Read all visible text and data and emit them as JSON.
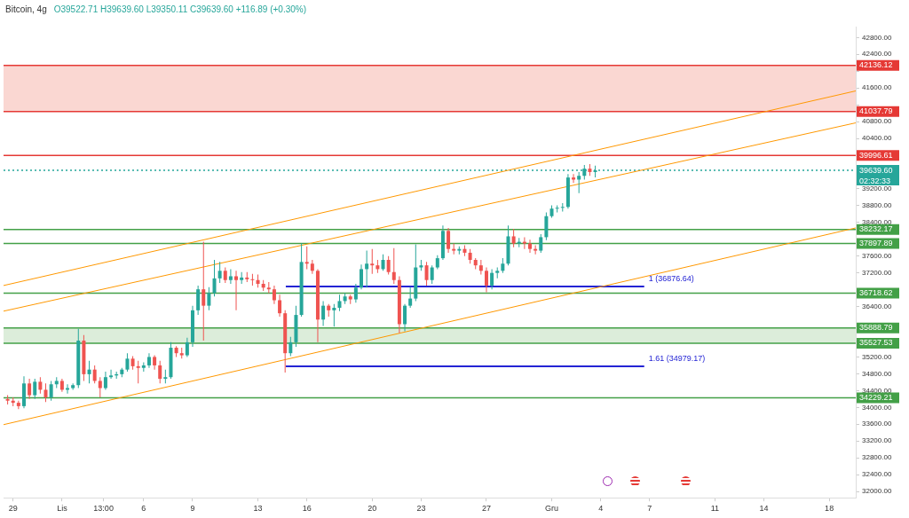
{
  "chart_data": {
    "type": "candlestick",
    "title": "Bitcoin, 4g",
    "subtitle": "O39522.71 H39639.60 L39350.11 C39639.60 +116.89 (+0.30%)",
    "x": [
      "--10-28T16:00",
      "--10-29T00:00",
      "--10-29T08:00",
      "--10-29T16:00",
      "--10-30T00:00",
      "--10-30T08:00",
      "--10-30T16:00",
      "--10-31T00:00",
      "--10-31T08:00",
      "--10-31T16:00",
      "--11-01T00:00",
      "--11-01T08:00",
      "--11-01T16:00",
      "--11-02T00:00",
      "--11-02T08:00",
      "--11-02T16:00",
      "--11-03T00:00",
      "--11-03T08:00",
      "--11-03T16:00",
      "--11-04T00:00",
      "--11-04T08:00",
      "--11-04T16:00",
      "--11-05T00:00",
      "--11-05T08:00",
      "--11-05T16:00",
      "--11-06T00:00",
      "--11-06T08:00",
      "--11-06T16:00",
      "--11-07T00:00",
      "--11-07T08:00",
      "--11-07T16:00",
      "--11-08T00:00",
      "--11-08T08:00",
      "--11-08T16:00",
      "--11-09T00:00",
      "--11-09T08:00",
      "--11-09T16:00",
      "--11-10T00:00",
      "--11-10T08:00",
      "--11-10T16:00",
      "--11-11T00:00",
      "--11-11T08:00",
      "--11-11T16:00",
      "--11-12T00:00",
      "--11-12T08:00",
      "--11-12T16:00",
      "--11-13T00:00",
      "--11-13T08:00",
      "--11-13T16:00",
      "--11-14T00:00",
      "--11-14T08:00",
      "--11-14T16:00",
      "--11-15T00:00",
      "--11-15T08:00",
      "--11-15T16:00",
      "--11-16T00:00",
      "--11-16T08:00",
      "--11-16T16:00",
      "--11-17T00:00",
      "--11-17T08:00",
      "--11-17T16:00",
      "--11-18T00:00",
      "--11-18T08:00",
      "--11-18T16:00",
      "--11-19T00:00",
      "--11-19T08:00",
      "--11-19T16:00",
      "--11-20T00:00",
      "--11-20T08:00",
      "--11-20T16:00",
      "--11-21T00:00",
      "--11-21T08:00",
      "--11-21T16:00",
      "--11-22T00:00",
      "--11-22T08:00",
      "--11-22T16:00",
      "--11-23T00:00",
      "--11-23T08:00",
      "--11-23T16:00",
      "--11-24T00:00",
      "--11-24T08:00",
      "--11-24T16:00",
      "--11-25T00:00",
      "--11-25T08:00",
      "--11-25T16:00",
      "--11-26T00:00",
      "--11-26T08:00",
      "--11-26T16:00",
      "--11-27T00:00",
      "--11-27T08:00",
      "--11-27T16:00",
      "--11-28T00:00",
      "--11-28T08:00",
      "--11-28T16:00",
      "--11-29T00:00",
      "--11-29T08:00",
      "--11-29T16:00",
      "--11-30T00:00",
      "--11-30T08:00",
      "--11-30T16:00",
      "--12-01T00:00",
      "--12-01T08:00",
      "--12-01T16:00",
      "--12-02T00:00",
      "--12-02T08:00",
      "--12-02T16:00",
      "--12-03T00:00",
      "--12-03T08:00",
      "--12-03T16:00"
    ],
    "ohlc": [
      [
        34200,
        34290,
        34070,
        34160
      ],
      [
        34160,
        34240,
        34030,
        34110
      ],
      [
        34110,
        34160,
        33960,
        34030
      ],
      [
        34030,
        34740,
        33980,
        34570
      ],
      [
        34570,
        34680,
        34200,
        34290
      ],
      [
        34290,
        34680,
        34200,
        34610
      ],
      [
        34610,
        34720,
        34330,
        34420
      ],
      [
        34420,
        34570,
        34130,
        34240
      ],
      [
        34240,
        34630,
        34160,
        34550
      ],
      [
        34550,
        34720,
        34460,
        34630
      ],
      [
        34630,
        34680,
        34370,
        34420
      ],
      [
        34420,
        34550,
        34330,
        34460
      ],
      [
        34460,
        34570,
        34420,
        34530
      ],
      [
        34530,
        35870,
        34460,
        35590
      ],
      [
        35590,
        35720,
        34630,
        34790
      ],
      [
        34790,
        35110,
        34570,
        34900
      ],
      [
        34900,
        35000,
        34570,
        34630
      ],
      [
        34630,
        34720,
        34240,
        34460
      ],
      [
        34460,
        34850,
        34420,
        34720
      ],
      [
        34720,
        34900,
        34680,
        34760
      ],
      [
        34760,
        34850,
        34680,
        34790
      ],
      [
        34790,
        34940,
        34720,
        34900
      ],
      [
        34900,
        35290,
        34850,
        35160
      ],
      [
        35160,
        35220,
        34900,
        34980
      ],
      [
        34980,
        35110,
        34570,
        34940
      ],
      [
        34940,
        35070,
        34850,
        35000
      ],
      [
        35000,
        35290,
        34940,
        35200
      ],
      [
        35200,
        35240,
        34900,
        35000
      ],
      [
        35000,
        35110,
        34570,
        34680
      ],
      [
        34680,
        34900,
        34570,
        34720
      ],
      [
        34720,
        35550,
        34680,
        35420
      ],
      [
        35420,
        35460,
        35200,
        35290
      ],
      [
        35290,
        35420,
        35160,
        35240
      ],
      [
        35240,
        35660,
        35200,
        35550
      ],
      [
        35550,
        36420,
        35440,
        36310
      ],
      [
        36310,
        36900,
        36200,
        36810
      ],
      [
        36810,
        37940,
        35590,
        36420
      ],
      [
        36420,
        36860,
        36310,
        36720
      ],
      [
        36720,
        37510,
        36640,
        37070
      ],
      [
        37070,
        37460,
        36960,
        37250
      ],
      [
        37250,
        37330,
        36960,
        37030
      ],
      [
        37030,
        37290,
        36940,
        37120
      ],
      [
        37120,
        37250,
        36310,
        37030
      ],
      [
        37030,
        37220,
        36940,
        37090
      ],
      [
        37090,
        37220,
        36980,
        37050
      ],
      [
        37050,
        37180,
        36900,
        37030
      ],
      [
        37030,
        37160,
        36850,
        36940
      ],
      [
        36940,
        37030,
        36770,
        36850
      ],
      [
        36850,
        36980,
        36720,
        36810
      ],
      [
        36810,
        36900,
        36460,
        36550
      ],
      [
        36550,
        36680,
        36160,
        36240
      ],
      [
        36240,
        36310,
        34830,
        35290
      ],
      [
        35290,
        35680,
        35220,
        35550
      ],
      [
        35550,
        36420,
        35440,
        36200
      ],
      [
        36200,
        37900,
        36160,
        37460
      ],
      [
        37460,
        37830,
        37290,
        37420
      ],
      [
        37420,
        37510,
        37180,
        37250
      ],
      [
        37250,
        37290,
        35550,
        36090
      ],
      [
        36090,
        36530,
        35940,
        36420
      ],
      [
        36420,
        36460,
        36160,
        36310
      ],
      [
        36310,
        36460,
        35920,
        36370
      ],
      [
        36370,
        36680,
        36290,
        36530
      ],
      [
        36530,
        36720,
        36460,
        36640
      ],
      [
        36640,
        36680,
        36460,
        36570
      ],
      [
        36570,
        36940,
        36490,
        36850
      ],
      [
        36850,
        37400,
        36810,
        37290
      ],
      [
        37290,
        37730,
        36850,
        37420
      ],
      [
        37420,
        37770,
        37180,
        37380
      ],
      [
        37380,
        37510,
        37200,
        37290
      ],
      [
        37290,
        37640,
        37250,
        37510
      ],
      [
        37510,
        37600,
        37160,
        37220
      ],
      [
        37220,
        37790,
        36940,
        37030
      ],
      [
        37030,
        37120,
        35770,
        35980
      ],
      [
        35980,
        36460,
        35810,
        36420
      ],
      [
        36420,
        36860,
        36370,
        36590
      ],
      [
        36590,
        37880,
        36530,
        37330
      ],
      [
        37330,
        37510,
        37250,
        37380
      ],
      [
        37380,
        37460,
        36900,
        37030
      ],
      [
        37030,
        37380,
        36940,
        37330
      ],
      [
        37330,
        37620,
        37290,
        37550
      ],
      [
        37550,
        38330,
        37510,
        38200
      ],
      [
        38200,
        38270,
        37680,
        37770
      ],
      [
        37770,
        37900,
        37640,
        37730
      ],
      [
        37730,
        37830,
        37640,
        37770
      ],
      [
        37770,
        37860,
        37600,
        37680
      ],
      [
        37680,
        37770,
        37420,
        37510
      ],
      [
        37510,
        37550,
        37290,
        37380
      ],
      [
        37380,
        37510,
        37160,
        37250
      ],
      [
        37250,
        37330,
        36740,
        36900
      ],
      [
        36900,
        37290,
        36810,
        37200
      ],
      [
        37200,
        37330,
        37070,
        37250
      ],
      [
        37250,
        37550,
        37200,
        37420
      ],
      [
        37420,
        38330,
        37380,
        38070
      ],
      [
        38070,
        38250,
        37810,
        37900
      ],
      [
        37900,
        38030,
        37810,
        37940
      ],
      [
        37940,
        38050,
        37770,
        37900
      ],
      [
        37900,
        37990,
        37680,
        37770
      ],
      [
        37770,
        37860,
        37640,
        37730
      ],
      [
        37730,
        38120,
        37680,
        38050
      ],
      [
        38050,
        38640,
        37980,
        38550
      ],
      [
        38550,
        38810,
        38510,
        38730
      ],
      [
        38730,
        38810,
        38640,
        38750
      ],
      [
        38750,
        38860,
        38660,
        38770
      ],
      [
        38770,
        39550,
        38730,
        39470
      ],
      [
        39470,
        39550,
        39340,
        39420
      ],
      [
        39420,
        39600,
        39100,
        39510
      ],
      [
        39510,
        39770,
        39420,
        39680
      ],
      [
        39680,
        39790,
        39510,
        39600
      ],
      [
        39600,
        39750,
        39470,
        39639.6
      ]
    ],
    "series": [
      {
        "type": "line",
        "color": "#ff9800",
        "x": [
          "--10-28T10:00",
          "--12-19T15:00"
        ],
        "values": [
          36900,
          41530
        ]
      },
      {
        "type": "line",
        "color": "#ff9800",
        "x": [
          "--10-28T10:00",
          "--12-19T15:00"
        ],
        "values": [
          36290,
          40770
        ]
      },
      {
        "type": "line",
        "color": "#ff9800",
        "x": [
          "--10-28T10:00",
          "--12-19T15:00"
        ],
        "values": [
          33590,
          38270
        ]
      },
      {
        "type": "line",
        "color": "#2424d4",
        "x": [
          "--11-14T17:00",
          "--12-06T16:00"
        ],
        "values": [
          36876.64,
          36876.64
        ]
      },
      {
        "type": "line",
        "color": "#2424d4",
        "x": [
          "--11-14T17:00",
          "--12-06T16:00"
        ],
        "values": [
          34979.17,
          34979.17
        ]
      }
    ],
    "bands": [
      {
        "axis": "y",
        "from": 41037.79,
        "to": 42136.12,
        "color": "#f9cdc7"
      },
      {
        "axis": "y",
        "from": 35527.53,
        "to": 35888.79,
        "color": "#d3e8d1"
      }
    ],
    "ref_lines": [
      {
        "axis": "y",
        "value": 42136.12,
        "label": "42136.12",
        "color": "#e53935"
      },
      {
        "axis": "y",
        "value": 41037.79,
        "label": "41037.79",
        "color": "#e53935"
      },
      {
        "axis": "y",
        "value": 39996.61,
        "label": "39996.61",
        "color": "#e53935"
      },
      {
        "axis": "y",
        "value": 39639.6,
        "label": "39639.60",
        "color": "#26a69a",
        "line_style": "dotted"
      },
      {
        "axis": "y",
        "value": 38232.17,
        "label": "38232.17",
        "color": "#43a047"
      },
      {
        "axis": "y",
        "value": 37897.89,
        "label": "37897.89",
        "color": "#43a047"
      },
      {
        "axis": "y",
        "value": 36718.62,
        "label": "36718.62",
        "color": "#43a047"
      },
      {
        "axis": "y",
        "value": 35888.79,
        "label": "35888.79",
        "color": "#43a047"
      },
      {
        "axis": "y",
        "value": 35527.53,
        "label": "35527.53",
        "color": "#43a047"
      },
      {
        "axis": "y",
        "value": 34229.21,
        "label": "34229.21",
        "color": "#43a047"
      }
    ],
    "annotations": [
      {
        "text": "1 (36876.64)",
        "x": "--12-06T16:00",
        "y": 36876.64
      },
      {
        "text": "1.61 (34979.17)",
        "x": "--12-06T16:00",
        "y": 34979.17
      },
      {
        "text": "02:32:33",
        "x": "--12-19T15:00",
        "y": 39639.6
      }
    ],
    "xlim": [
      "--10-28T10:00",
      "--12-19T15:00"
    ],
    "xticks": [
      {
        "value": "--10-29",
        "label": "29"
      },
      {
        "value": "--11-01",
        "label": "Lis"
      },
      {
        "value": "--11-03T13:00",
        "label": "13:00"
      },
      {
        "value": "--11-06",
        "label": "6"
      },
      {
        "value": "--11-09",
        "label": "9"
      },
      {
        "value": "--11-13",
        "label": "13"
      },
      {
        "value": "--11-16",
        "label": "16"
      },
      {
        "value": "--11-20",
        "label": "20"
      },
      {
        "value": "--11-23",
        "label": "23"
      },
      {
        "value": "--11-27",
        "label": "27"
      },
      {
        "value": "--12-01",
        "label": "Gru"
      },
      {
        "value": "--12-04",
        "label": "4"
      },
      {
        "value": "--12-07",
        "label": "7"
      },
      {
        "value": "--12-11",
        "label": "11"
      },
      {
        "value": "--12-14",
        "label": "14"
      },
      {
        "value": "--12-18",
        "label": "18"
      }
    ],
    "ylim": [
      31850,
      43060
    ],
    "yticks": [
      {
        "value": 32000,
        "label": "32000.00"
      },
      {
        "value": 32400,
        "label": "32400.00"
      },
      {
        "value": 32800,
        "label": "32800.00"
      },
      {
        "value": 33200,
        "label": "33200.00"
      },
      {
        "value": 33600,
        "label": "33600.00"
      },
      {
        "value": 34000,
        "label": "34000.00"
      },
      {
        "value": 34400,
        "label": "34400.00"
      },
      {
        "value": 34800,
        "label": "34800.00"
      },
      {
        "value": 35200,
        "label": "35200.00"
      },
      {
        "value": 35600,
        "label": null
      },
      {
        "value": 36000,
        "label": null
      },
      {
        "value": 36400,
        "label": "36400.00"
      },
      {
        "value": 36800,
        "label": null
      },
      {
        "value": 37200,
        "label": "37200.00"
      },
      {
        "value": 37600,
        "label": "37600.00"
      },
      {
        "value": 38000,
        "label": null
      },
      {
        "value": 38400,
        "label": "38400.00"
      },
      {
        "value": 38800,
        "label": "38800.00"
      },
      {
        "value": 39200,
        "label": "39200.00"
      },
      {
        "value": 39600,
        "label": null
      },
      {
        "value": 40000,
        "label": null
      },
      {
        "value": 40400,
        "label": "40400.00"
      },
      {
        "value": 40800,
        "label": "40800.00"
      },
      {
        "value": 41200,
        "label": null
      },
      {
        "value": 41600,
        "label": "41600.00"
      },
      {
        "value": 42000,
        "label": null
      },
      {
        "value": 42400,
        "label": "42400.00"
      },
      {
        "value": 42800,
        "label": "42800.00"
      }
    ],
    "grid": false,
    "legend": false
  }
}
